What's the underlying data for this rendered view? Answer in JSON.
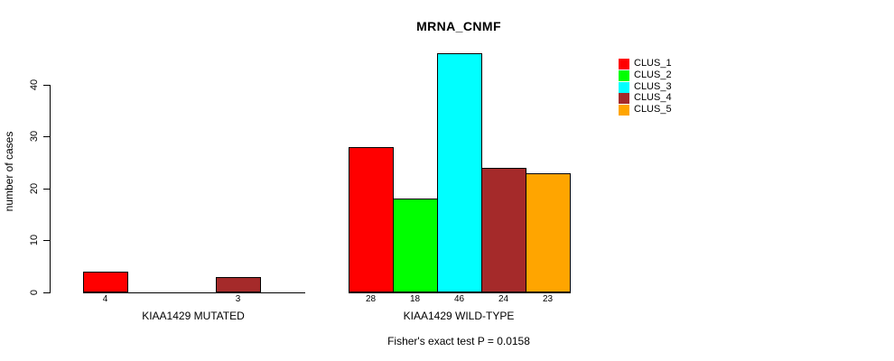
{
  "chart_data": {
    "type": "bar",
    "title": "MRNA_CNMF",
    "ylabel": "number of cases",
    "xlabel": "",
    "ylim": [
      0,
      46
    ],
    "yticks": [
      0,
      10,
      20,
      30,
      40
    ],
    "grid": false,
    "series": [
      {
        "name": "CLUS_1",
        "color": "#ff0000"
      },
      {
        "name": "CLUS_2",
        "color": "#00ff00"
      },
      {
        "name": "CLUS_3",
        "color": "#00ffff"
      },
      {
        "name": "CLUS_4",
        "color": "#a52a2a"
      },
      {
        "name": "CLUS_5",
        "color": "#ffa500"
      }
    ],
    "groups": [
      {
        "label": "KIAA1429 MUTATED",
        "values": [
          4,
          0,
          0,
          3,
          0
        ],
        "value_labels": [
          "4",
          "",
          "",
          "3",
          ""
        ]
      },
      {
        "label": "KIAA1429 WILD-TYPE",
        "values": [
          28,
          18,
          46,
          24,
          23
        ],
        "value_labels": [
          "28",
          "18",
          "46",
          "24",
          "23"
        ]
      }
    ],
    "legend": {
      "position": "top-right",
      "entries": [
        "CLUS_1",
        "CLUS_2",
        "CLUS_3",
        "CLUS_4",
        "CLUS_5"
      ]
    },
    "annotation": "Fisher's exact test P = 0.0158",
    "axis_color": "#000000",
    "bar_border_color": "#000000"
  }
}
